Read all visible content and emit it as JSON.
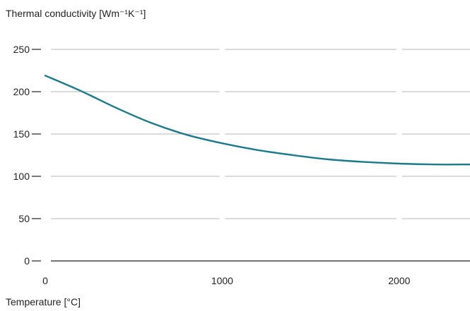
{
  "chart_data": {
    "type": "line",
    "ylabel": "Thermal conductivity [Wm⁻¹K⁻¹]",
    "xlabel": "Temperature [°C]",
    "xlim": [
      0,
      2400
    ],
    "ylim": [
      0,
      250
    ],
    "x_ticks": [
      "0",
      "1000",
      "2000"
    ],
    "y_ticks": [
      "0",
      "50",
      "100",
      "150",
      "200",
      "250"
    ],
    "grid": "horizontal",
    "series": [
      {
        "color": "#1a7a8c",
        "x": [
          0,
          200,
          400,
          600,
          800,
          1000,
          1200,
          1400,
          1600,
          1800,
          2000,
          2200,
          2400
        ],
        "y": [
          219,
          201,
          181,
          163,
          149,
          139,
          131,
          125,
          120,
          117,
          115,
          114,
          114
        ]
      }
    ]
  }
}
